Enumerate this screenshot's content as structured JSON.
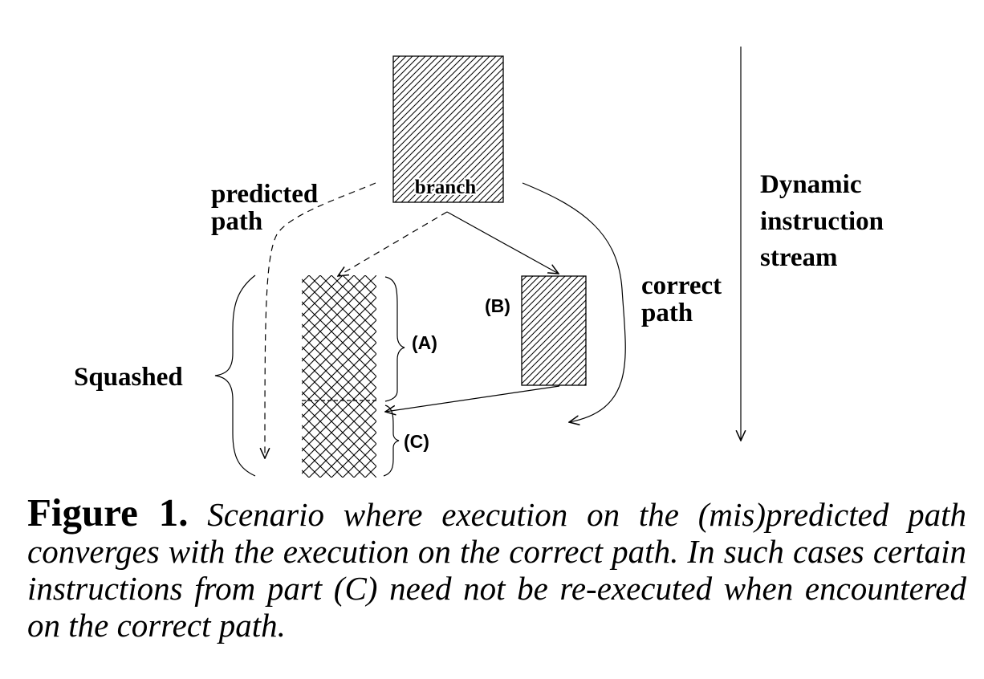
{
  "diagram": {
    "labels": {
      "branch": "branch",
      "predicted_path_line1": "predicted",
      "predicted_path_line2": "path",
      "correct_path_line1": "correct",
      "correct_path_line2": "path",
      "dynamic_line1": "Dynamic",
      "dynamic_line2": "instruction",
      "dynamic_line3": "stream",
      "squashed": "Squashed",
      "part_a": "(A)",
      "part_b": "(B)",
      "part_c": "(C)"
    }
  },
  "caption": {
    "figure_label": "Figure 1.",
    "text": "Scenario where execution on the (mis)predicted path converges with the execution on the correct path. In such cases certain instructions from part (C) need not be re-executed when encountered on the correct path."
  }
}
